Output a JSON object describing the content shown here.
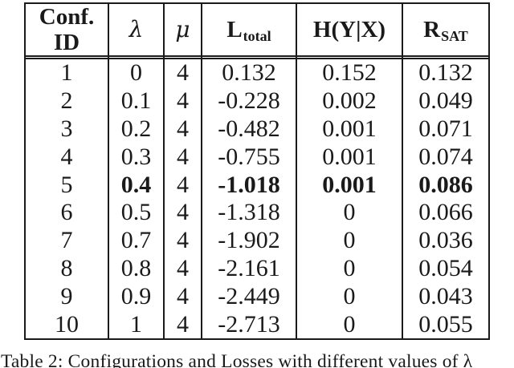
{
  "table": {
    "title_hidden": "",
    "headers": {
      "conf_line1": "Conf.",
      "conf_line2": "ID",
      "lambda": "λ",
      "mu": "μ",
      "l_main": "L",
      "l_sub": "total",
      "h": "H(Y|X)",
      "r_main": "R",
      "r_sub": "SAT"
    },
    "highlight": {
      "row_index": 4,
      "bold_columns": [
        1,
        3,
        4,
        5
      ]
    },
    "rows": [
      {
        "cells": [
          "1",
          "0",
          "4",
          "0.132",
          "0.152",
          "0.132"
        ]
      },
      {
        "cells": [
          "2",
          "0.1",
          "4",
          "-0.228",
          "0.002",
          "0.049"
        ]
      },
      {
        "cells": [
          "3",
          "0.2",
          "4",
          "-0.482",
          "0.001",
          "0.071"
        ]
      },
      {
        "cells": [
          "4",
          "0.3",
          "4",
          "-0.755",
          "0.001",
          "0.074"
        ]
      },
      {
        "cells": [
          "5",
          "0.4",
          "4",
          "-1.018",
          "0.001",
          "0.086"
        ]
      },
      {
        "cells": [
          "6",
          "0.5",
          "4",
          "-1.318",
          "0",
          "0.066"
        ]
      },
      {
        "cells": [
          "7",
          "0.7",
          "4",
          "-1.902",
          "0",
          "0.036"
        ]
      },
      {
        "cells": [
          "8",
          "0.8",
          "4",
          "-2.161",
          "0",
          "0.054"
        ]
      },
      {
        "cells": [
          "9",
          "0.9",
          "4",
          "-2.449",
          "0",
          "0.043"
        ]
      },
      {
        "cells": [
          "10",
          "1",
          "4",
          "-2.713",
          "0",
          "0.055"
        ]
      }
    ]
  },
  "caption": "Table 2: Configurations and Losses with different values of λ",
  "colors": {
    "text": "#1a1a1a",
    "line": "#1a1a1a",
    "background": "#ffffff"
  }
}
